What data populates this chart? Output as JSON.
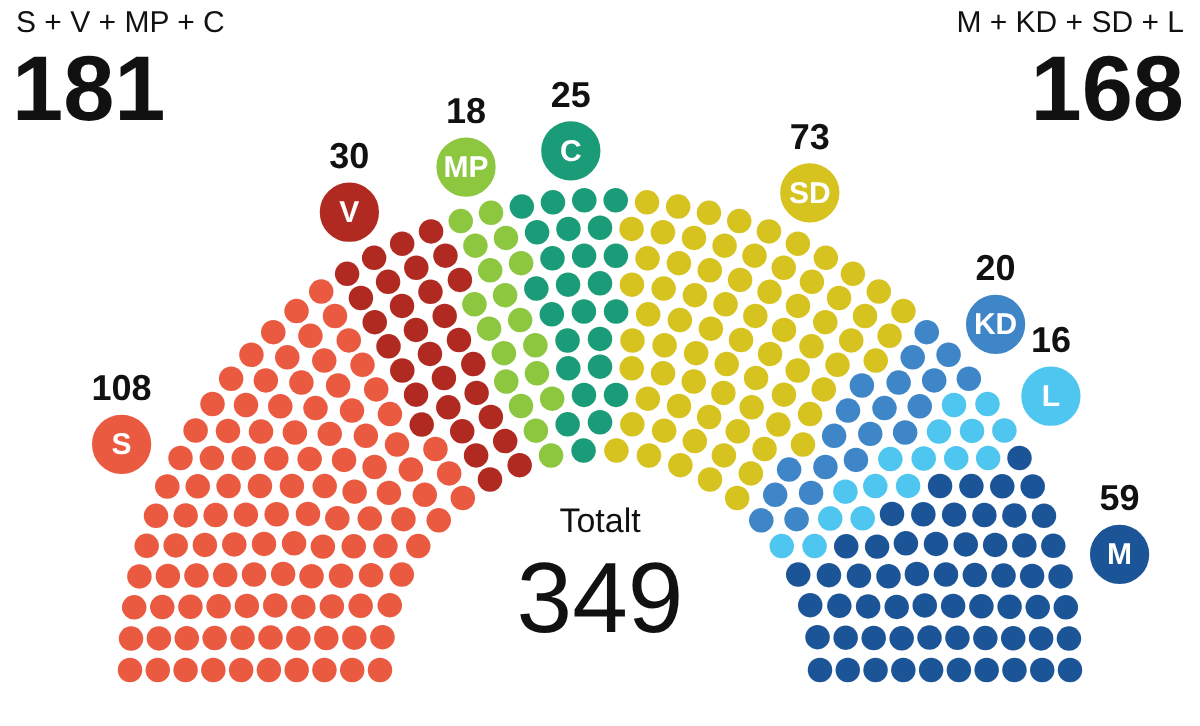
{
  "chart_data": {
    "type": "other",
    "categories": [
      "S",
      "V",
      "MP",
      "C",
      "SD",
      "KD",
      "L",
      "M"
    ],
    "values": [
      108,
      30,
      18,
      25,
      73,
      20,
      16,
      59
    ],
    "colors": [
      "#ea5a40",
      "#b12a21",
      "#8dc63f",
      "#1b9c78",
      "#d6c31f",
      "#3e86c8",
      "#4ec6ef",
      "#1c5597"
    ],
    "data_labels": true,
    "annotations": [
      "S + V + MP + C",
      "181",
      "M + KD + SD + L",
      "168",
      "Totalt",
      "349"
    ]
  }
}
